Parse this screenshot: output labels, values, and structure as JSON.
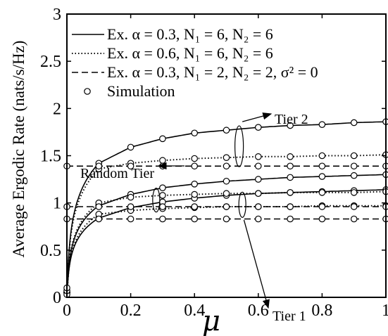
{
  "chart_data": {
    "type": "line",
    "xlabel": "μ",
    "ylabel": "Average Ergodic Rate (nats/s/Hz)",
    "xlim": [
      0,
      1
    ],
    "ylim": [
      0,
      3
    ],
    "xticks": [
      "0",
      "0.2",
      "0.4",
      "0.6",
      "0.8",
      "1"
    ],
    "yticks": [
      "0",
      "0.5",
      "1",
      "1.5",
      "2",
      "2.5",
      "3"
    ],
    "xtick_values": [
      0,
      0.2,
      0.4,
      0.6,
      0.8,
      1
    ],
    "ytick_values": [
      0,
      0.5,
      1,
      1.5,
      2,
      2.5,
      3
    ],
    "grid": false,
    "legend_position": "top-left",
    "legend": [
      {
        "text": "Ex.  α = 0.3, N₁ = 6, N₂ = 6",
        "style": "solid"
      },
      {
        "text": "Ex.  α = 0.6, N₁ = 6, N₂ = 6",
        "style": "dotted"
      },
      {
        "text": "Ex.  α = 0.3, N₁ = 2, N₂ = 2, σ² = 0",
        "style": "dashed"
      },
      {
        "text": "Simulation",
        "style": "marker"
      }
    ],
    "sim_x": [
      0,
      0.1,
      0.2,
      0.3,
      0.4,
      0.5,
      0.6,
      0.7,
      0.8,
      0.9,
      1.0
    ],
    "curves": [
      {
        "style": "solid",
        "group": "tier2",
        "x": [
          0.001,
          0.1,
          0.2,
          0.3,
          0.4,
          0.5,
          0.6,
          0.7,
          0.8,
          0.9,
          1.0
        ],
        "y": [
          0.05,
          1.42,
          1.59,
          1.68,
          1.74,
          1.77,
          1.8,
          1.82,
          1.83,
          1.85,
          1.86
        ]
      },
      {
        "style": "solid",
        "group": "random",
        "x": [
          0.001,
          0.1,
          0.2,
          0.3,
          0.4,
          0.5,
          0.6,
          0.7,
          0.8,
          0.9,
          1.0
        ],
        "y": [
          0.05,
          0.97,
          1.09,
          1.16,
          1.2,
          1.23,
          1.25,
          1.27,
          1.28,
          1.29,
          1.3
        ]
      },
      {
        "style": "solid",
        "group": "tier1",
        "x": [
          0.001,
          0.1,
          0.2,
          0.3,
          0.4,
          0.5,
          0.6,
          0.7,
          0.8,
          0.9,
          1.0
        ],
        "y": [
          0.05,
          0.84,
          0.95,
          1.01,
          1.05,
          1.08,
          1.1,
          1.11,
          1.12,
          1.13,
          1.14
        ]
      },
      {
        "style": "dotted",
        "group": "tier2",
        "x": [
          0.001,
          0.1,
          0.2,
          0.3,
          0.4,
          0.5,
          0.6,
          0.7,
          0.8,
          0.9,
          1.0
        ],
        "y": [
          0.05,
          1.36,
          1.42,
          1.45,
          1.47,
          1.48,
          1.49,
          1.49,
          1.5,
          1.5,
          1.51
        ]
      },
      {
        "style": "dotted",
        "group": "random",
        "x": [
          0.001,
          0.1,
          0.2,
          0.3,
          0.4,
          0.5,
          0.6,
          0.7,
          0.8,
          0.9,
          1.0
        ],
        "y": [
          0.05,
          1.0,
          1.06,
          1.08,
          1.09,
          1.1,
          1.1,
          1.11,
          1.11,
          1.11,
          1.12
        ]
      },
      {
        "style": "dotted",
        "group": "tier1",
        "x": [
          0.001,
          0.1,
          0.2,
          0.3,
          0.4,
          0.5,
          0.6,
          0.7,
          0.8,
          0.9,
          1.0
        ],
        "y": [
          0.05,
          0.88,
          0.92,
          0.94,
          0.95,
          0.96,
          0.96,
          0.96,
          0.97,
          0.97,
          0.97
        ]
      },
      {
        "style": "dashed",
        "group": "tier2",
        "x": [
          0,
          1
        ],
        "y": [
          1.39,
          1.39
        ]
      },
      {
        "style": "dashed",
        "group": "random",
        "x": [
          0,
          1
        ],
        "y": [
          0.96,
          0.96
        ]
      },
      {
        "style": "dashed",
        "group": "tier1",
        "x": [
          0,
          1
        ],
        "y": [
          0.83,
          0.83
        ]
      }
    ],
    "annotations": [
      {
        "text": "Tier 2",
        "arrow_to": [
          0.54,
          1.92
        ]
      },
      {
        "text": "Random Tier",
        "arrow_to": [
          0.47,
          1.26
        ]
      },
      {
        "text": "Tier 1",
        "arrow_to": [
          0.55,
          0.84
        ]
      }
    ]
  }
}
